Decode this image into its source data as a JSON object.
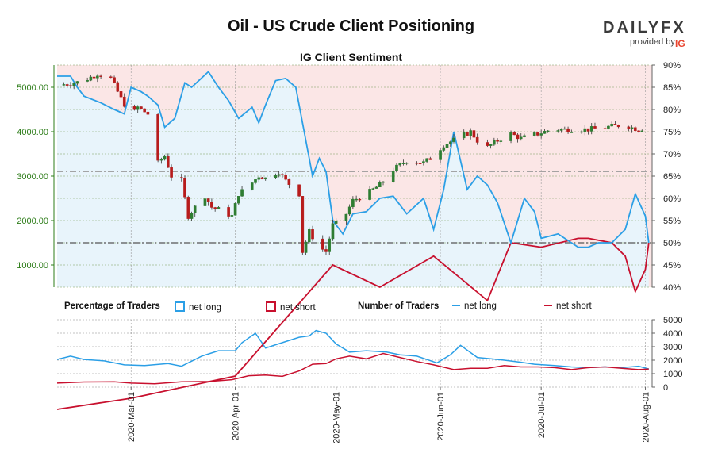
{
  "title": "Oil - US Crude Client Positioning",
  "brand": {
    "wordmark": "DAILYFX",
    "provided_by": "provided by",
    "badge": "IG"
  },
  "colors": {
    "net_long": "#2b9fe6",
    "net_short": "#c8102e",
    "bg_long": "#e8f4fb",
    "bg_short": "#fbe6e6",
    "price_axis": "#2e7d1a",
    "candle_up": "#2e7d32",
    "candle_down": "#b71c1c"
  },
  "legend": {
    "pct_heading": "Percentage of Traders",
    "pct_long": "net long",
    "pct_short": "net short",
    "num_heading": "Number of Traders",
    "num_long": "net long",
    "num_short": "net short"
  },
  "chart_data": [
    {
      "type": "candlestick+line",
      "title": "IG Client Sentiment",
      "price_ticks": [
        "1000.00",
        "2000.00",
        "3000.00",
        "4000.00",
        "5000.00"
      ],
      "price_range": [
        500,
        5500
      ],
      "pct_ticks": [
        "40%",
        "45%",
        "50%",
        "55%",
        "60%",
        "65%",
        "70%",
        "75%",
        "80%",
        "85%",
        "90%"
      ],
      "pct_range": [
        40,
        90
      ],
      "date_range": [
        "2020-02-08",
        "2020-08-03"
      ],
      "reference_lines": {
        "price": 3100,
        "pct": 50
      },
      "grid": true,
      "price_close": [
        [
          "2020-02-08",
          5050
        ],
        [
          "2020-02-12",
          5080
        ],
        [
          "2020-02-16",
          5150
        ],
        [
          "2020-02-20",
          5300
        ],
        [
          "2020-02-24",
          5200
        ],
        [
          "2020-02-27",
          4750
        ],
        [
          "2020-03-01",
          4350
        ],
        [
          "2020-03-03",
          4550
        ],
        [
          "2020-03-06",
          4400
        ],
        [
          "2020-03-09",
          3300
        ],
        [
          "2020-03-11",
          3450
        ],
        [
          "2020-03-13",
          3000
        ],
        [
          "2020-03-16",
          2900
        ],
        [
          "2020-03-18",
          2100
        ],
        [
          "2020-03-20",
          2300
        ],
        [
          "2020-03-23",
          2550
        ],
        [
          "2020-03-25",
          2300
        ],
        [
          "2020-03-27",
          2250
        ],
        [
          "2020-03-31",
          2100
        ],
        [
          "2020-04-02",
          2600
        ],
        [
          "2020-04-06",
          2850
        ],
        [
          "2020-04-08",
          3000
        ],
        [
          "2020-04-10",
          2950
        ],
        [
          "2020-04-14",
          3100
        ],
        [
          "2020-04-16",
          2900
        ],
        [
          "2020-04-20",
          2600
        ],
        [
          "2020-04-21",
          1300
        ],
        [
          "2020-04-23",
          1750
        ],
        [
          "2020-04-26",
          1400
        ],
        [
          "2020-04-28",
          1300
        ],
        [
          "2020-04-30",
          1900
        ],
        [
          "2020-05-03",
          2000
        ],
        [
          "2020-05-06",
          2450
        ],
        [
          "2020-05-10",
          2600
        ],
        [
          "2020-05-14",
          2800
        ],
        [
          "2020-05-18",
          3150
        ],
        [
          "2020-05-22",
          3350
        ],
        [
          "2020-05-27",
          3300
        ],
        [
          "2020-05-29",
          3400
        ],
        [
          "2020-06-02",
          3700
        ],
        [
          "2020-06-06",
          3850
        ],
        [
          "2020-06-10",
          4000
        ],
        [
          "2020-06-14",
          3600
        ],
        [
          "2020-06-18",
          3800
        ],
        [
          "2020-06-22",
          3950
        ],
        [
          "2020-06-25",
          3850
        ],
        [
          "2020-06-30",
          3950
        ],
        [
          "2020-07-04",
          4050
        ],
        [
          "2020-07-10",
          4050
        ],
        [
          "2020-07-15",
          4050
        ],
        [
          "2020-07-20",
          4100
        ],
        [
          "2020-07-25",
          4150
        ],
        [
          "2020-07-30",
          4050
        ],
        [
          "2020-08-02",
          4100
        ]
      ],
      "pct_long": [
        [
          "2020-02-08",
          87.5
        ],
        [
          "2020-02-12",
          87.5
        ],
        [
          "2020-02-14",
          85
        ],
        [
          "2020-02-16",
          83
        ],
        [
          "2020-02-21",
          81.5
        ],
        [
          "2020-02-25",
          80
        ],
        [
          "2020-02-28",
          79
        ],
        [
          "2020-03-01",
          85
        ],
        [
          "2020-03-04",
          84
        ],
        [
          "2020-03-06",
          83
        ],
        [
          "2020-03-09",
          81
        ],
        [
          "2020-03-11",
          76
        ],
        [
          "2020-03-14",
          78
        ],
        [
          "2020-03-17",
          86
        ],
        [
          "2020-03-19",
          85
        ],
        [
          "2020-03-24",
          88.5
        ],
        [
          "2020-03-27",
          85
        ],
        [
          "2020-03-30",
          82
        ],
        [
          "2020-04-02",
          78
        ],
        [
          "2020-04-06",
          80.5
        ],
        [
          "2020-04-08",
          77
        ],
        [
          "2020-04-10",
          81
        ],
        [
          "2020-04-13",
          86.5
        ],
        [
          "2020-04-16",
          87
        ],
        [
          "2020-04-19",
          85
        ],
        [
          "2020-04-21",
          77
        ],
        [
          "2020-04-24",
          65
        ],
        [
          "2020-04-26",
          69
        ],
        [
          "2020-04-28",
          66
        ],
        [
          "2020-04-30",
          55
        ],
        [
          "2020-05-03",
          52
        ],
        [
          "2020-05-06",
          56.5
        ],
        [
          "2020-05-10",
          57
        ],
        [
          "2020-05-14",
          60
        ],
        [
          "2020-05-18",
          60.5
        ],
        [
          "2020-05-22",
          56.5
        ],
        [
          "2020-05-27",
          60
        ],
        [
          "2020-05-30",
          53
        ],
        [
          "2020-06-02",
          62
        ],
        [
          "2020-06-05",
          75
        ],
        [
          "2020-06-09",
          62
        ],
        [
          "2020-06-12",
          65
        ],
        [
          "2020-06-15",
          63
        ],
        [
          "2020-06-18",
          59
        ],
        [
          "2020-06-22",
          50
        ],
        [
          "2020-06-26",
          60
        ],
        [
          "2020-06-29",
          57
        ],
        [
          "2020-07-01",
          51
        ],
        [
          "2020-07-06",
          52
        ],
        [
          "2020-07-12",
          49
        ],
        [
          "2020-07-15",
          49
        ],
        [
          "2020-07-18",
          50
        ],
        [
          "2020-07-22",
          50
        ],
        [
          "2020-07-26",
          53
        ],
        [
          "2020-07-29",
          61
        ],
        [
          "2020-08-01",
          56
        ],
        [
          "2020-08-02",
          50
        ]
      ],
      "pct_short": [
        [
          "2020-02-08",
          12.5
        ],
        [
          "2020-03-01",
          15
        ],
        [
          "2020-04-01",
          20
        ],
        [
          "2020-04-30",
          45
        ],
        [
          "2020-05-14",
          40
        ],
        [
          "2020-05-30",
          47
        ],
        [
          "2020-06-15",
          37
        ],
        [
          "2020-06-22",
          50
        ],
        [
          "2020-07-01",
          49
        ],
        [
          "2020-07-12",
          51
        ],
        [
          "2020-07-15",
          51
        ],
        [
          "2020-07-22",
          50
        ],
        [
          "2020-07-26",
          47
        ],
        [
          "2020-07-29",
          39
        ],
        [
          "2020-08-01",
          44
        ],
        [
          "2020-08-02",
          50
        ]
      ]
    },
    {
      "type": "line",
      "y_ticks": [
        "0",
        "1000",
        "2000",
        "3000",
        "4000",
        "5000"
      ],
      "ylim": [
        0,
        5000
      ],
      "x_ticks": [
        "2020-Mar-01",
        "2020-Apr-01",
        "2020-May-01",
        "2020-Jun-01",
        "2020-Jul-01",
        "2020-Aug-01"
      ],
      "series": [
        {
          "name": "net long",
          "points": [
            [
              "2020-02-08",
              2050
            ],
            [
              "2020-02-12",
              2300
            ],
            [
              "2020-02-16",
              2050
            ],
            [
              "2020-02-22",
              1950
            ],
            [
              "2020-02-28",
              1650
            ],
            [
              "2020-03-05",
              1600
            ],
            [
              "2020-03-12",
              1750
            ],
            [
              "2020-03-16",
              1550
            ],
            [
              "2020-03-22",
              2300
            ],
            [
              "2020-03-27",
              2700
            ],
            [
              "2020-04-01",
              2700
            ],
            [
              "2020-04-03",
              3300
            ],
            [
              "2020-04-07",
              4000
            ],
            [
              "2020-04-10",
              2900
            ],
            [
              "2020-04-15",
              3300
            ],
            [
              "2020-04-20",
              3700
            ],
            [
              "2020-04-23",
              3800
            ],
            [
              "2020-04-25",
              4200
            ],
            [
              "2020-04-28",
              4000
            ],
            [
              "2020-05-01",
              3200
            ],
            [
              "2020-05-05",
              2600
            ],
            [
              "2020-05-10",
              2700
            ],
            [
              "2020-05-16",
              2600
            ],
            [
              "2020-05-20",
              2400
            ],
            [
              "2020-05-25",
              2300
            ],
            [
              "2020-05-31",
              1800
            ],
            [
              "2020-06-04",
              2400
            ],
            [
              "2020-06-07",
              3100
            ],
            [
              "2020-06-12",
              2200
            ],
            [
              "2020-06-16",
              2100
            ],
            [
              "2020-06-20",
              2000
            ],
            [
              "2020-06-25",
              1850
            ],
            [
              "2020-06-29",
              1700
            ],
            [
              "2020-07-05",
              1600
            ],
            [
              "2020-07-10",
              1500
            ],
            [
              "2020-07-15",
              1450
            ],
            [
              "2020-07-20",
              1500
            ],
            [
              "2020-07-25",
              1450
            ],
            [
              "2020-07-30",
              1550
            ],
            [
              "2020-08-02",
              1350
            ]
          ]
        },
        {
          "name": "net short",
          "points": [
            [
              "2020-02-08",
              300
            ],
            [
              "2020-02-16",
              380
            ],
            [
              "2020-02-25",
              400
            ],
            [
              "2020-03-01",
              300
            ],
            [
              "2020-03-08",
              250
            ],
            [
              "2020-03-16",
              400
            ],
            [
              "2020-03-24",
              420
            ],
            [
              "2020-03-31",
              550
            ],
            [
              "2020-04-05",
              850
            ],
            [
              "2020-04-10",
              900
            ],
            [
              "2020-04-15",
              800
            ],
            [
              "2020-04-20",
              1200
            ],
            [
              "2020-04-24",
              1700
            ],
            [
              "2020-04-28",
              1750
            ],
            [
              "2020-05-01",
              2100
            ],
            [
              "2020-05-05",
              2300
            ],
            [
              "2020-05-10",
              2100
            ],
            [
              "2020-05-15",
              2500
            ],
            [
              "2020-05-20",
              2200
            ],
            [
              "2020-05-25",
              1900
            ],
            [
              "2020-05-30",
              1650
            ],
            [
              "2020-06-05",
              1300
            ],
            [
              "2020-06-10",
              1400
            ],
            [
              "2020-06-15",
              1400
            ],
            [
              "2020-06-20",
              1600
            ],
            [
              "2020-06-25",
              1500
            ],
            [
              "2020-06-30",
              1500
            ],
            [
              "2020-07-05",
              1450
            ],
            [
              "2020-07-10",
              1300
            ],
            [
              "2020-07-15",
              1450
            ],
            [
              "2020-07-20",
              1500
            ],
            [
              "2020-07-25",
              1400
            ],
            [
              "2020-07-30",
              1300
            ],
            [
              "2020-08-02",
              1350
            ]
          ]
        }
      ]
    }
  ]
}
